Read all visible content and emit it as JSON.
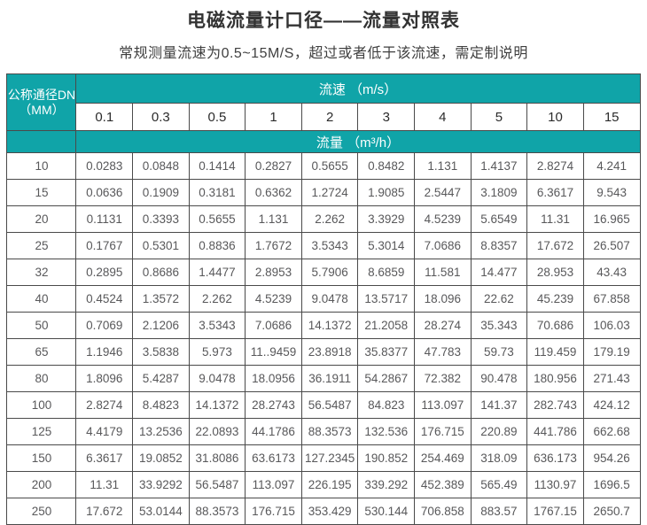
{
  "page": {
    "title": "电磁流量计口径——流量对照表",
    "subtitle": "常规测量流速为0.5~15M/S，超过或者低于该流速，需定制说明"
  },
  "table": {
    "corner_header_line1": "公称通径DN",
    "corner_header_line2": "（MM）",
    "velocity_header": "流速 （m/s）",
    "flow_header": "流量 （m³/h）",
    "velocity_columns": [
      "0.1",
      "0.3",
      "0.5",
      "1",
      "2",
      "3",
      "4",
      "5",
      "10",
      "15"
    ],
    "rows": [
      {
        "dn": "10",
        "values": [
          "0.0283",
          "0.0848",
          "0.1414",
          "0.2827",
          "0.5655",
          "0.8482",
          "1.131",
          "1.4137",
          "2.8274",
          "4.241"
        ]
      },
      {
        "dn": "15",
        "values": [
          "0.0636",
          "0.1909",
          "0.3181",
          "0.6362",
          "1.2724",
          "1.9085",
          "2.5447",
          "3.1809",
          "6.3617",
          "9.543"
        ]
      },
      {
        "dn": "20",
        "values": [
          "0.1131",
          "0.3393",
          "0.5655",
          "1.131",
          "2.262",
          "3.3929",
          "4.5239",
          "5.6549",
          "11.31",
          "16.965"
        ]
      },
      {
        "dn": "25",
        "values": [
          "0.1767",
          "0.5301",
          "0.8836",
          "1.7672",
          "3.5343",
          "5.3014",
          "7.0686",
          "8.8357",
          "17.672",
          "26.507"
        ]
      },
      {
        "dn": "32",
        "values": [
          "0.2895",
          "0.8686",
          "1.4477",
          "2.8953",
          "5.7906",
          "8.6859",
          "11.581",
          "14.477",
          "28.953",
          "43.43"
        ]
      },
      {
        "dn": "40",
        "values": [
          "0.4524",
          "1.3572",
          "2.262",
          "4.5239",
          "9.0478",
          "13.5717",
          "18.096",
          "22.62",
          "45.239",
          "67.858"
        ]
      },
      {
        "dn": "50",
        "values": [
          "0.7069",
          "2.1206",
          "3.5343",
          "7.0686",
          "14.1372",
          "21.2058",
          "28.274",
          "35.343",
          "70.686",
          "106.03"
        ]
      },
      {
        "dn": "65",
        "values": [
          "1.1946",
          "3.5838",
          "5.973",
          "11..9459",
          "23.8918",
          "35.8377",
          "47.783",
          "59.73",
          "119.459",
          "179.19"
        ]
      },
      {
        "dn": "80",
        "values": [
          "1.8096",
          "5.4287",
          "9.0478",
          "18.0956",
          "36.1911",
          "54.2867",
          "72.382",
          "90.478",
          "180.956",
          "271.43"
        ]
      },
      {
        "dn": "100",
        "values": [
          "2.8274",
          "8.4823",
          "14.1372",
          "28.2743",
          "56.5487",
          "84.823",
          "113.097",
          "141.37",
          "282.743",
          "424.12"
        ]
      },
      {
        "dn": "125",
        "values": [
          "4.4179",
          "13.2536",
          "22.0893",
          "44.1786",
          "88.3573",
          "132.536",
          "176.715",
          "220.89",
          "441.786",
          "662.68"
        ]
      },
      {
        "dn": "150",
        "values": [
          "6.3617",
          "19.0852",
          "31.8086",
          "63.6173",
          "127.2345",
          "190.852",
          "254.469",
          "318.09",
          "636.173",
          "954.26"
        ]
      },
      {
        "dn": "200",
        "values": [
          "11.31",
          "33.9292",
          "56.5487",
          "113.097",
          "226.195",
          "339.292",
          "452.389",
          "565.49",
          "1130.97",
          "1696.5"
        ]
      },
      {
        "dn": "250",
        "values": [
          "17.672",
          "53.0144",
          "88.3573",
          "176.715",
          "353.429",
          "530.144",
          "706.858",
          "883.57",
          "1767.15",
          "2650.7"
        ]
      }
    ]
  },
  "colors": {
    "header_teal": "#10a4a8",
    "border": "#4a4a4a",
    "data_text": "#58585a",
    "header_text": "#ffffff"
  }
}
